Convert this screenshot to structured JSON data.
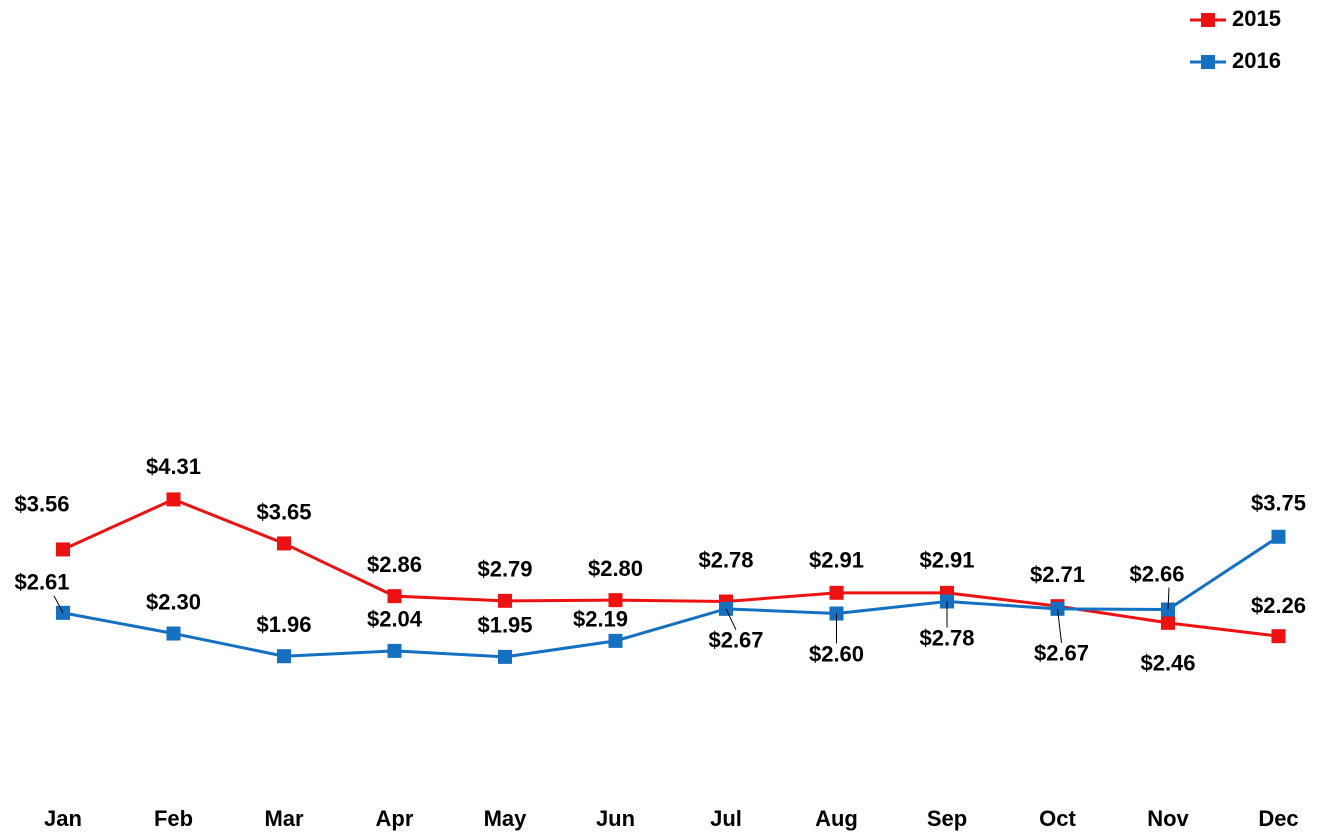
{
  "chart_data": {
    "type": "line",
    "categories": [
      "Jan",
      "Feb",
      "Mar",
      "Apr",
      "May",
      "Jun",
      "Jul",
      "Aug",
      "Sep",
      "Oct",
      "Nov",
      "Dec"
    ],
    "series": [
      {
        "name": "2015",
        "color": "#ee1111",
        "values": [
          3.56,
          4.31,
          3.65,
          2.86,
          2.79,
          2.8,
          2.78,
          2.91,
          2.91,
          2.71,
          2.46,
          2.26
        ],
        "value_labels": [
          "$3.56",
          "$4.31",
          "$3.65",
          "$2.86",
          "$2.79",
          "$2.80",
          "$2.78",
          "$2.91",
          "$2.91",
          "$2.71",
          "$2.46",
          "$2.26"
        ]
      },
      {
        "name": "2016",
        "color": "#1470c0",
        "values": [
          2.61,
          2.3,
          1.96,
          2.04,
          1.95,
          2.19,
          2.67,
          2.6,
          2.78,
          2.67,
          2.66,
          3.75
        ],
        "value_labels": [
          "$2.61",
          "$2.30",
          "$1.96",
          "$2.04",
          "$1.95",
          "$2.19",
          "$2.67",
          "$2.60",
          "$2.78",
          "$2.67",
          "$2.66",
          "$3.75"
        ]
      }
    ],
    "ylim": [
      0,
      11
    ],
    "legend": "top-right"
  }
}
